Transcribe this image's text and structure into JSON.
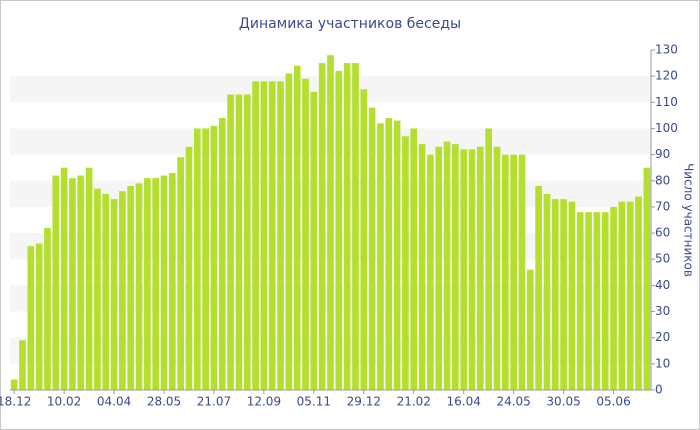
{
  "chart_data": {
    "type": "bar",
    "title": "Динамика участников беседы",
    "y_label": "Число участников",
    "categories": [
      "18.12",
      null,
      null,
      null,
      null,
      null,
      "10.02",
      null,
      null,
      null,
      null,
      null,
      "04.04",
      null,
      null,
      null,
      null,
      null,
      "28.05",
      null,
      null,
      null,
      null,
      null,
      "21.07",
      null,
      null,
      null,
      null,
      null,
      "12.09",
      null,
      null,
      null,
      null,
      null,
      "05.11",
      null,
      null,
      null,
      null,
      null,
      "29.12",
      null,
      null,
      null,
      null,
      null,
      "21.02",
      null,
      null,
      null,
      null,
      null,
      "16.04",
      null,
      null,
      null,
      null,
      null,
      "24.05",
      null,
      null,
      null,
      null,
      null,
      "30.05",
      null,
      null,
      null,
      null,
      null,
      "05.06",
      null,
      null,
      null,
      null
    ],
    "values": [
      4,
      19,
      55,
      56,
      62,
      82,
      85,
      81,
      82,
      85,
      77,
      75,
      73,
      76,
      78,
      79,
      81,
      81,
      82,
      83,
      89,
      93,
      100,
      100,
      101,
      104,
      113,
      113,
      113,
      118,
      118,
      118,
      118,
      121,
      124,
      119,
      114,
      125,
      128,
      122,
      125,
      125,
      115,
      108,
      102,
      104,
      103,
      97,
      100,
      94,
      90,
      93,
      95,
      94,
      92,
      92,
      93,
      100,
      93,
      90,
      90,
      90,
      46,
      78,
      75,
      73,
      73,
      72,
      68,
      68,
      68,
      68,
      70,
      72,
      72,
      74,
      85
    ],
    "color": "#b4df2e",
    "ylim": [
      0,
      130
    ],
    "yticks": [
      0,
      10,
      20,
      30,
      40,
      50,
      60,
      70,
      80,
      90,
      100,
      110,
      120,
      130
    ],
    "grid": "bands"
  }
}
